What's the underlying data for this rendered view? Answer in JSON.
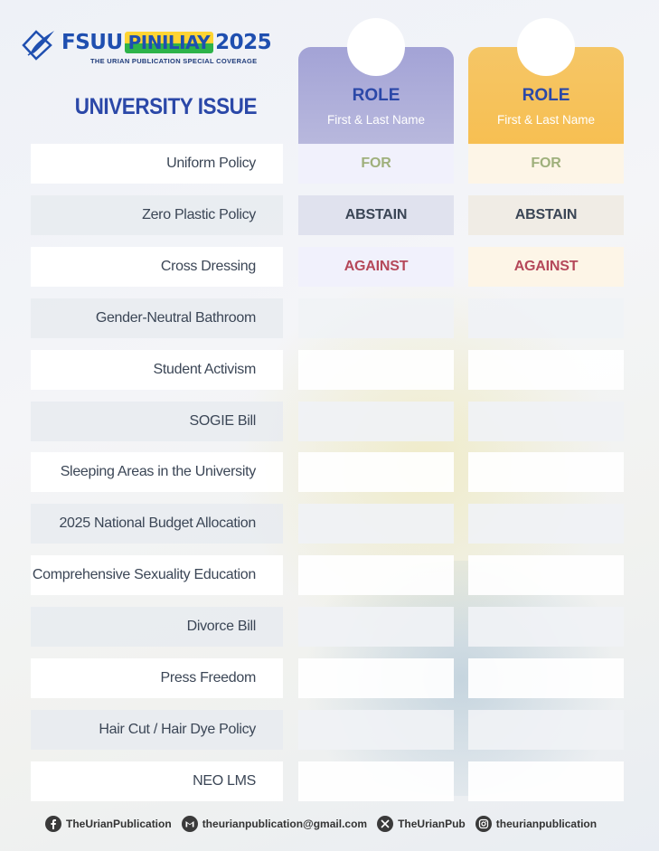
{
  "brand": {
    "name_left": "FSUU",
    "name_highlight": "PINILIAY",
    "year": "2025",
    "subtitle": "THE URIAN PUBLICATION SPECIAL COVERAGE"
  },
  "header": {
    "issue_title": "UNIVERSITY ISSUE",
    "columns": [
      {
        "role": "ROLE",
        "name": "First & Last Name",
        "accent": "#a3a3d6"
      },
      {
        "role": "ROLE",
        "name": "First & Last Name",
        "accent": "#f7bf52"
      }
    ]
  },
  "rows": [
    {
      "issue": "Uniform Policy",
      "votes": [
        "FOR",
        "FOR"
      ]
    },
    {
      "issue": "Zero Plastic Policy",
      "votes": [
        "ABSTAIN",
        "ABSTAIN"
      ]
    },
    {
      "issue": "Cross Dressing",
      "votes": [
        "AGAINST",
        "AGAINST"
      ]
    },
    {
      "issue": "Gender-Neutral Bathroom",
      "votes": [
        "",
        ""
      ]
    },
    {
      "issue": "Student Activism",
      "votes": [
        "",
        ""
      ]
    },
    {
      "issue": "SOGIE Bill",
      "votes": [
        "",
        ""
      ]
    },
    {
      "issue": "Sleeping Areas in the University",
      "votes": [
        "",
        ""
      ]
    },
    {
      "issue": "2025 National Budget Allocation",
      "votes": [
        "",
        ""
      ]
    },
    {
      "issue": "Comprehensive Sexuality Education",
      "votes": [
        "",
        ""
      ]
    },
    {
      "issue": "Divorce Bill",
      "votes": [
        "",
        ""
      ]
    },
    {
      "issue": "Press Freedom",
      "votes": [
        "",
        ""
      ]
    },
    {
      "issue": "Hair Cut / Hair Dye Policy",
      "votes": [
        "",
        ""
      ]
    },
    {
      "issue": "NEO LMS",
      "votes": [
        "",
        ""
      ]
    }
  ],
  "vote_colors": {
    "FOR": "#9fb07c",
    "ABSTAIN": "#3b4656",
    "AGAINST": "#b5485a"
  },
  "footer": [
    {
      "icon": "facebook-icon",
      "text": "TheUrianPublication"
    },
    {
      "icon": "gmail-icon",
      "text": "theurianpublication@gmail.com"
    },
    {
      "icon": "x-icon",
      "text": "TheUrianPub"
    },
    {
      "icon": "instagram-icon",
      "text": "theurianpublication"
    }
  ]
}
